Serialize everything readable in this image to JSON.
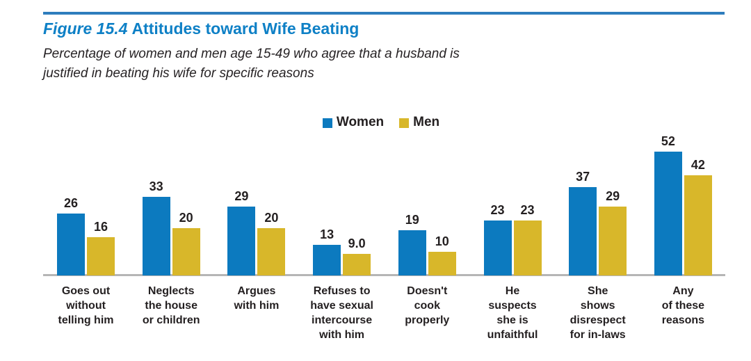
{
  "figure": {
    "title_prefix": "Figure 15.4",
    "title_rest": "Attitudes toward Wife Beating",
    "subtitle_lines": [
      "Percentage of women and men age 15-49 who agree that a husband is",
      "justified in beating his wife for specific reasons"
    ]
  },
  "colors": {
    "women_blue": "#0c7abf",
    "men_gold": "#d8b72a",
    "title_blue": "#0e80c6",
    "rule_blue": "#2e7dbd",
    "axis_gray": "#b5b5b5",
    "text_dark": "#231f20"
  },
  "chart_data": {
    "type": "bar",
    "title": "Figure 15.4 Attitudes toward Wife Beating",
    "subtitle": "Percentage of women and men age 15-49 who agree that a husband is justified in beating his wife for specific reasons",
    "categories": [
      "Goes out\nwithout\ntelling him",
      "Neglects\nthe house\nor children",
      "Argues\nwith him",
      "Refuses to\nhave sexual\nintercourse\nwith him",
      "Doesn't\ncook\nproperly",
      "He\nsuspects\nshe is\nunfaithful",
      "She\nshows\ndisrespect\nfor in-laws",
      "Any\nof these\nreasons"
    ],
    "series": [
      {
        "name": "Women",
        "color": "#0c7abf",
        "values": [
          26,
          33,
          29,
          13,
          19,
          23,
          37,
          52
        ],
        "labels": [
          "26",
          "33",
          "29",
          "13",
          "19",
          "23",
          "37",
          "52"
        ]
      },
      {
        "name": "Men",
        "color": "#d8b72a",
        "values": [
          16,
          20,
          20,
          9.0,
          10,
          23,
          29,
          42
        ],
        "labels": [
          "16",
          "20",
          "20",
          "9.0",
          "10",
          "23",
          "29",
          "42"
        ]
      }
    ],
    "ylim": [
      0,
      55
    ],
    "grid": false,
    "axis_ticks_shown": false,
    "value_labels_shown": true,
    "legend_position": "top-center"
  }
}
